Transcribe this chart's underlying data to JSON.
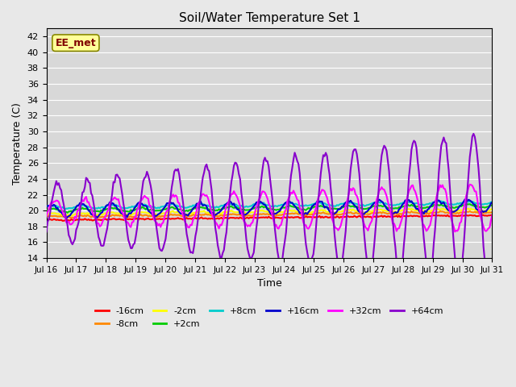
{
  "title": "Soil/Water Temperature Set 1",
  "xlabel": "Time",
  "ylabel": "Temperature (C)",
  "ylim": [
    14,
    43
  ],
  "yticks": [
    14,
    16,
    18,
    20,
    22,
    24,
    26,
    28,
    30,
    32,
    34,
    36,
    38,
    40,
    42
  ],
  "xtick_positions": [
    0,
    1,
    2,
    3,
    4,
    5,
    6,
    7,
    8,
    9,
    10,
    11,
    12,
    13,
    14,
    15
  ],
  "xtick_labels": [
    "Jul 16",
    "Jul 17",
    "Jul 18",
    "Jul 19",
    "Jul 20",
    "Jul 21",
    "Jul 22",
    "Jul 23",
    "Jul 24",
    "Jul 25",
    "Jul 26",
    "Jul 27",
    "Jul 28",
    "Jul 29",
    "Jul 30",
    "Jul 31"
  ],
  "series": [
    {
      "label": "-16cm",
      "color": "#ff0000"
    },
    {
      "label": "-8cm",
      "color": "#ff8800"
    },
    {
      "label": "-2cm",
      "color": "#ffff00"
    },
    {
      "label": "+2cm",
      "color": "#00cc00"
    },
    {
      "label": "+8cm",
      "color": "#00cccc"
    },
    {
      "label": "+16cm",
      "color": "#0000cc"
    },
    {
      "label": "+32cm",
      "color": "#ff00ff"
    },
    {
      "label": "+64cm",
      "color": "#8800cc"
    }
  ],
  "annotation_text": "EE_met",
  "bg_color": "#e8e8e8",
  "plot_bg_color": "#d8d8d8",
  "n_days": 15,
  "pts_per_day": 24
}
